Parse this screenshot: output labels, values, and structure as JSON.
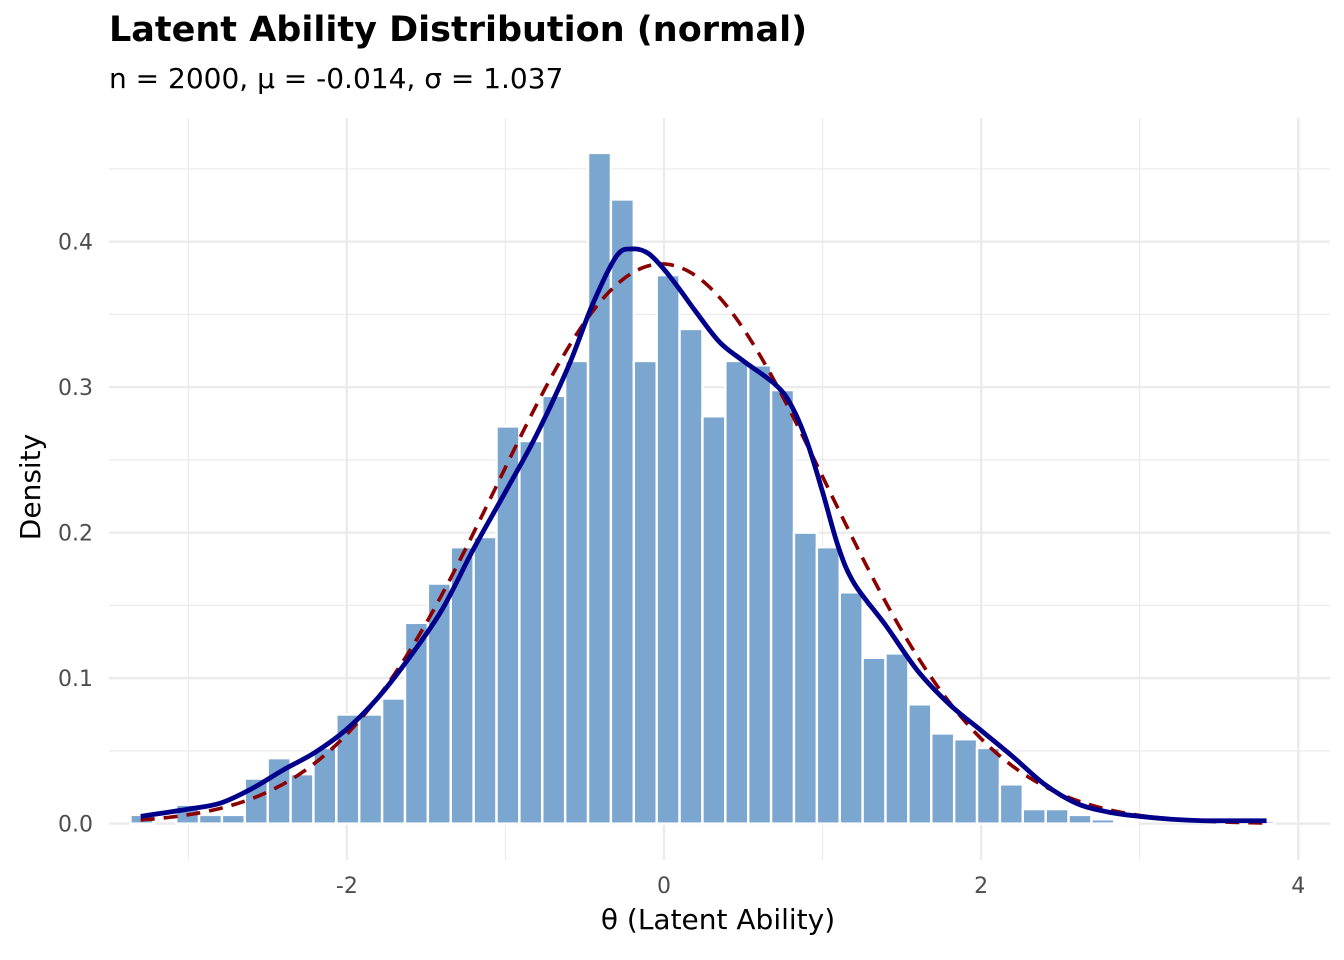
{
  "chart_data": {
    "type": "bar",
    "title": "Latent Ability Distribution (normal)",
    "subtitle": "n = 2000, μ = -0.014, σ = 1.037",
    "xlabel": "θ (Latent Ability)",
    "ylabel": "Density",
    "xlim": [
      -3.5,
      4.2
    ],
    "ylim": [
      -0.025,
      0.485
    ],
    "x_ticks": [
      -2,
      0,
      2,
      4
    ],
    "y_ticks": [
      0.0,
      0.1,
      0.2,
      0.3,
      0.4
    ],
    "x_tick_labels": [
      "-2",
      "0",
      "2",
      "4"
    ],
    "y_tick_labels": [
      "0.0",
      "0.1",
      "0.2",
      "0.3",
      "0.4"
    ],
    "grid": true,
    "bin_width": 0.1443,
    "bins_start": -3.365,
    "colors": {
      "bars": "#7ba6cf",
      "density": "#00008b",
      "normal": "#8b0000",
      "grid": "#ebebeb"
    },
    "series": [
      {
        "type": "histogram",
        "values": [
          0.006,
          0.0,
          0.013,
          0.006,
          0.006,
          0.031,
          0.045,
          0.034,
          0.052,
          0.075,
          0.075,
          0.086,
          0.138,
          0.165,
          0.19,
          0.197,
          0.273,
          0.263,
          0.294,
          0.318,
          0.461,
          0.429,
          0.318,
          0.377,
          0.34,
          0.28,
          0.318,
          0.315,
          0.298,
          0.2,
          0.19,
          0.159,
          0.114,
          0.117,
          0.082,
          0.062,
          0.058,
          0.052,
          0.027,
          0.01,
          0.01,
          0.006,
          0.003,
          0.001,
          0.0,
          0.0,
          0.0,
          0.002,
          0.001,
          0.002
        ]
      },
      {
        "type": "density",
        "x": [
          -3.3,
          -3.0,
          -2.8,
          -2.6,
          -2.4,
          -2.2,
          -2.0,
          -1.8,
          -1.6,
          -1.4,
          -1.2,
          -1.0,
          -0.8,
          -0.6,
          -0.45,
          -0.3,
          -0.2,
          -0.1,
          0.0,
          0.1,
          0.2,
          0.35,
          0.5,
          0.7,
          0.8,
          0.9,
          1.0,
          1.1,
          1.2,
          1.4,
          1.6,
          1.8,
          2.0,
          2.2,
          2.4,
          2.6,
          2.8,
          3.0,
          3.2,
          3.4,
          3.6,
          3.8
        ],
        "y": [
          0.005,
          0.01,
          0.014,
          0.024,
          0.037,
          0.049,
          0.065,
          0.087,
          0.115,
          0.147,
          0.189,
          0.228,
          0.268,
          0.315,
          0.357,
          0.39,
          0.395,
          0.392,
          0.381,
          0.367,
          0.352,
          0.331,
          0.318,
          0.302,
          0.288,
          0.263,
          0.228,
          0.19,
          0.165,
          0.136,
          0.105,
          0.082,
          0.064,
          0.046,
          0.027,
          0.014,
          0.008,
          0.005,
          0.003,
          0.002,
          0.002,
          0.002
        ]
      },
      {
        "type": "normal",
        "mean": -0.014,
        "sd": 1.037,
        "x_range": [
          -3.3,
          3.8
        ]
      }
    ]
  }
}
